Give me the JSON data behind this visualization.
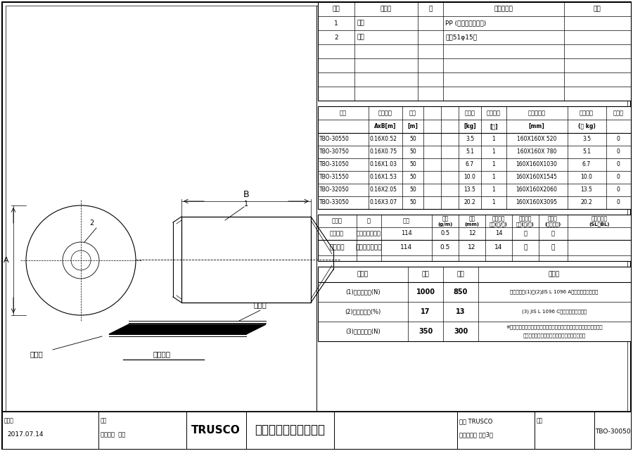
{
  "bg_color": "#ffffff",
  "table1_rows": [
    [
      "1",
      "本体",
      "",
      "PP (ポリプロピレン)",
      ""
    ],
    [
      "2",
      "紙管",
      "",
      "紙（51φ15）",
      ""
    ],
    [
      "",
      "",
      "",
      "",
      ""
    ],
    [
      "",
      "",
      "",
      "",
      ""
    ],
    [
      "",
      "",
      "",
      "",
      ""
    ]
  ],
  "table2_rows": [
    [
      "TBO-30550",
      "0.16X0.52",
      "50",
      "3.5",
      "1",
      "160X160X 520",
      "3.5",
      "0"
    ],
    [
      "TBO-30750",
      "0.16X0.75",
      "50",
      "5.1",
      "1",
      "160X160X 780",
      "5.1",
      "0"
    ],
    [
      "TBO-31050",
      "0.16X1.03",
      "50",
      "6.7",
      "1",
      "160X160X1030",
      "6.7",
      "0"
    ],
    [
      "TBO-31550",
      "0.16X1.53",
      "50",
      "10.0",
      "1",
      "160X160X1545",
      "10.0",
      "0"
    ],
    [
      "TBO-32050",
      "0.16X2.05",
      "50",
      "13.5",
      "1",
      "160X160X2060",
      "13.5",
      "0"
    ],
    [
      "TBO-33050",
      "0.16X3.07",
      "50",
      "20.2",
      "1",
      "160X160X3095",
      "20.2",
      "0"
    ]
  ],
  "table3_row": [
    "グリーン",
    "ポリプロピレン",
    "114",
    "0.5",
    "12",
    "14",
    "－",
    "－"
  ],
  "table4_rows": [
    [
      "(1)引張強度　(N)",
      "1000",
      "850",
      "試験方法：(1)、(2)JIS L 1096 A法（ストリップ法）"
    ],
    [
      "(2)伸度　　　(%)",
      "17",
      "13",
      "(3) JIS L 1096 C法（グラビイド法）"
    ],
    [
      "(3)引裂強度　(N)",
      "350",
      "300",
      "※左記に示した数値は当社での測定値であり、保証値ではありません。|本材料使用上の目安としてお取り扱い下さい。"
    ]
  ],
  "footer_date": "2017.07.14",
  "footer_part_number": "TBO-30050"
}
